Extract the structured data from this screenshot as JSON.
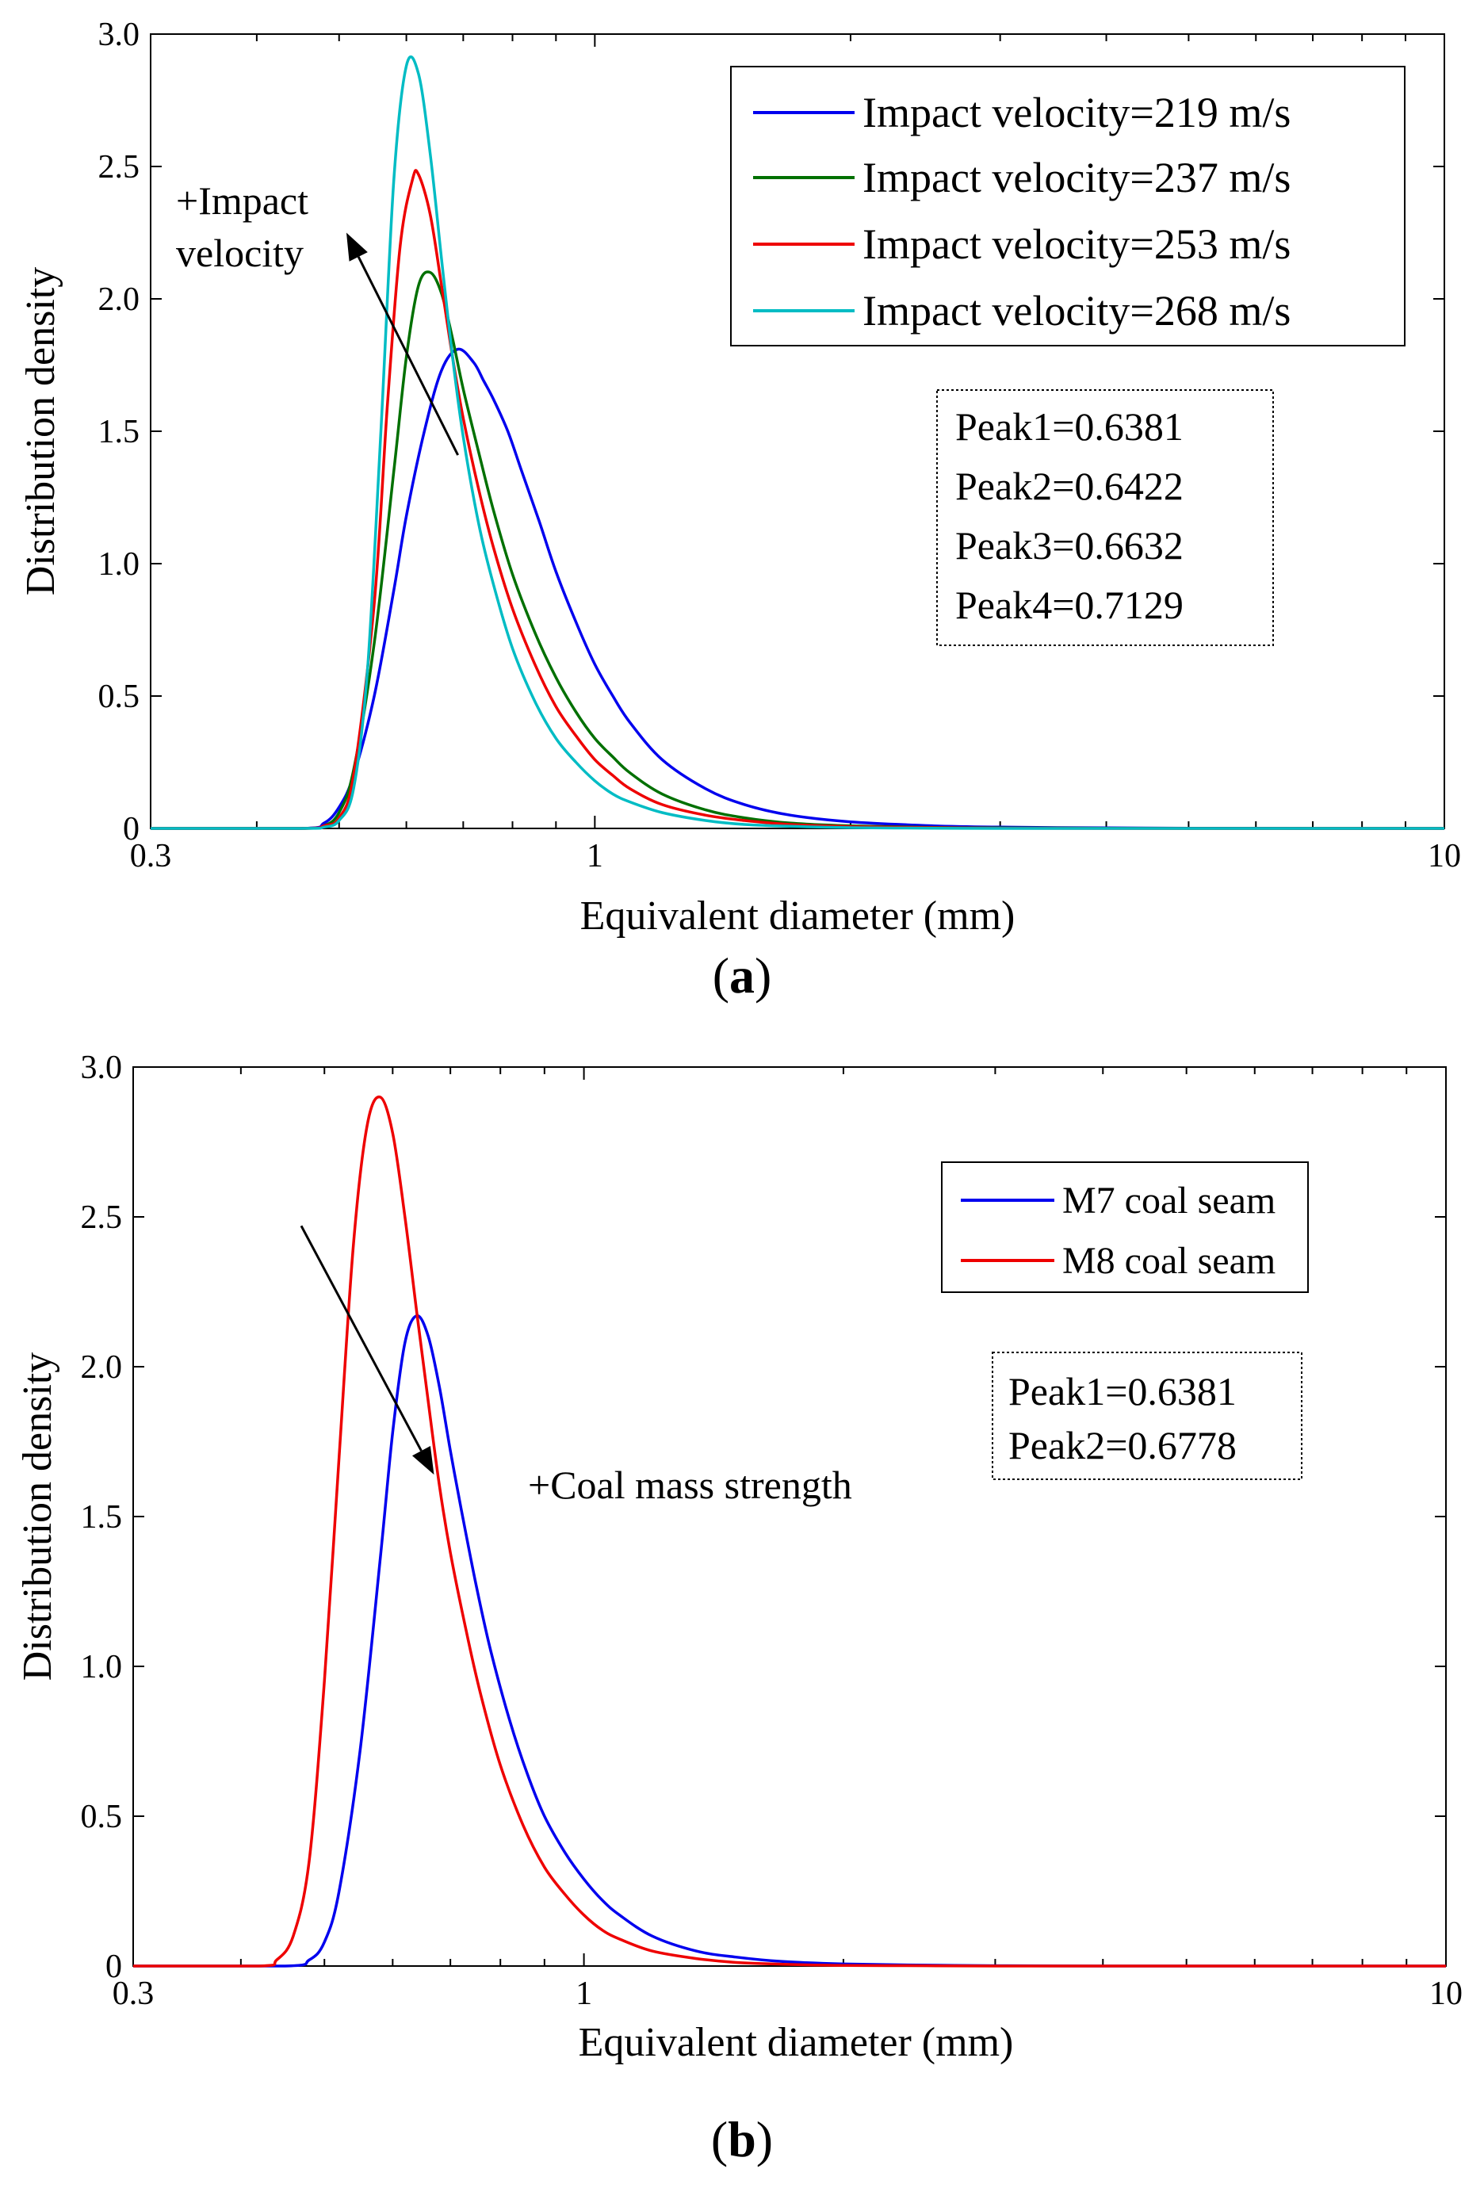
{
  "chart_data": [
    {
      "type": "line",
      "panel_label": "a",
      "xlabel": "Equivalent diameter (mm)",
      "ylabel": "Distribution density",
      "xscale": "log",
      "xlim": [
        0.3,
        10
      ],
      "ylim": [
        0,
        3.0
      ],
      "x_tick_labels": [
        "0.3",
        "1",
        "10"
      ],
      "x_ticks": [
        0.3,
        1,
        10
      ],
      "y_tick_labels": [
        "0",
        "0.5",
        "1.0",
        "1.5",
        "2.0",
        "2.5",
        "3.0"
      ],
      "y_ticks": [
        0,
        0.5,
        1.0,
        1.5,
        2.0,
        2.5,
        3.0
      ],
      "legend_position": "top-right",
      "series": [
        {
          "name": "Impact velocity=219 m/s",
          "color": "#0000ee",
          "x": [
            0.45,
            0.48,
            0.5,
            0.52,
            0.55,
            0.58,
            0.6,
            0.63,
            0.66,
            0.69,
            0.72,
            0.74,
            0.76,
            0.79,
            0.82,
            0.86,
            0.9,
            0.95,
            1.0,
            1.05,
            1.1,
            1.2,
            1.35,
            1.5,
            1.7,
            2.0,
            2.5,
            3.0,
            4.0,
            5.0,
            7.0,
            10.0
          ],
          "y": [
            0,
            0.02,
            0.08,
            0.2,
            0.5,
            0.9,
            1.18,
            1.5,
            1.73,
            1.81,
            1.76,
            1.69,
            1.62,
            1.5,
            1.35,
            1.16,
            0.97,
            0.78,
            0.62,
            0.5,
            0.4,
            0.26,
            0.15,
            0.09,
            0.05,
            0.025,
            0.01,
            0.005,
            0.002,
            0.001,
            0,
            0
          ]
        },
        {
          "name": "Impact velocity=237 m/s",
          "color": "#007000",
          "x": [
            0.45,
            0.48,
            0.5,
            0.52,
            0.55,
            0.58,
            0.6,
            0.62,
            0.64,
            0.66,
            0.68,
            0.7,
            0.73,
            0.76,
            0.8,
            0.85,
            0.9,
            0.95,
            1.0,
            1.05,
            1.1,
            1.2,
            1.35,
            1.5,
            1.7,
            2.0,
            2.5,
            3.0,
            4.0,
            5.0,
            7.0,
            10.0
          ],
          "y": [
            0,
            0.01,
            0.06,
            0.22,
            0.7,
            1.35,
            1.78,
            2.05,
            2.1,
            2.02,
            1.85,
            1.66,
            1.42,
            1.2,
            0.96,
            0.74,
            0.57,
            0.44,
            0.34,
            0.27,
            0.21,
            0.13,
            0.07,
            0.04,
            0.02,
            0.01,
            0.004,
            0.002,
            0.001,
            0,
            0,
            0
          ]
        },
        {
          "name": "Impact velocity=253 m/s",
          "color": "#ee0000",
          "x": [
            0.45,
            0.48,
            0.5,
            0.52,
            0.55,
            0.57,
            0.59,
            0.61,
            0.62,
            0.64,
            0.66,
            0.68,
            0.7,
            0.73,
            0.76,
            0.8,
            0.85,
            0.9,
            0.95,
            1.0,
            1.05,
            1.1,
            1.2,
            1.35,
            1.5,
            1.7,
            2.0,
            2.5,
            3.0,
            4.0,
            5.0,
            10.0
          ],
          "y": [
            0,
            0.01,
            0.04,
            0.2,
            0.85,
            1.6,
            2.2,
            2.45,
            2.47,
            2.32,
            2.05,
            1.78,
            1.55,
            1.28,
            1.06,
            0.83,
            0.62,
            0.46,
            0.35,
            0.26,
            0.2,
            0.15,
            0.09,
            0.05,
            0.03,
            0.015,
            0.007,
            0.003,
            0.001,
            0,
            0,
            0
          ]
        },
        {
          "name": "Impact velocity=268 m/s",
          "color": "#00bcc4",
          "x": [
            0.45,
            0.48,
            0.5,
            0.52,
            0.54,
            0.56,
            0.58,
            0.6,
            0.62,
            0.64,
            0.66,
            0.68,
            0.7,
            0.73,
            0.76,
            0.8,
            0.85,
            0.9,
            0.95,
            1.0,
            1.05,
            1.1,
            1.2,
            1.35,
            1.5,
            1.7,
            2.0,
            2.5,
            3.0,
            4.0,
            5.0,
            10.0
          ],
          "y": [
            0,
            0.005,
            0.03,
            0.15,
            0.6,
            1.5,
            2.45,
            2.88,
            2.85,
            2.55,
            2.15,
            1.78,
            1.48,
            1.15,
            0.92,
            0.68,
            0.48,
            0.34,
            0.25,
            0.18,
            0.13,
            0.1,
            0.06,
            0.03,
            0.015,
            0.008,
            0.003,
            0.001,
            0,
            0,
            0,
            0
          ]
        }
      ],
      "annotations": {
        "arrow_label": [
          "+Impact",
          "velocity"
        ],
        "arrow_from": [
          0.69,
          1.41
        ],
        "arrow_to": [
          0.51,
          2.25
        ],
        "peaks_box": [
          "Peak1=0.6381",
          "Peak2=0.6422",
          "Peak3=0.6632",
          "Peak4=0.7129"
        ]
      }
    },
    {
      "type": "line",
      "panel_label": "b",
      "xlabel": "Equivalent diameter (mm)",
      "ylabel": "Distribution density",
      "xscale": "log",
      "xlim": [
        0.3,
        10
      ],
      "ylim": [
        0,
        3.0
      ],
      "x_tick_labels": [
        "0.3",
        "1",
        "10"
      ],
      "x_ticks": [
        0.3,
        1,
        10
      ],
      "y_tick_labels": [
        "0",
        "0.5",
        "1.0",
        "1.5",
        "2.0",
        "2.5",
        "3.0"
      ],
      "y_ticks": [
        0,
        0.5,
        1.0,
        1.5,
        2.0,
        2.5,
        3.0
      ],
      "legend_position": "top-right",
      "series": [
        {
          "name": "M7 coal seam",
          "color": "#0000ee",
          "x": [
            0.45,
            0.48,
            0.5,
            0.52,
            0.55,
            0.58,
            0.6,
            0.62,
            0.64,
            0.66,
            0.68,
            0.7,
            0.72,
            0.75,
            0.78,
            0.82,
            0.86,
            0.9,
            0.95,
            1.0,
            1.05,
            1.1,
            1.2,
            1.35,
            1.5,
            1.7,
            2.0,
            2.5,
            3.0,
            4.0,
            5.0,
            10.0
          ],
          "y": [
            0,
            0.02,
            0.08,
            0.25,
            0.72,
            1.35,
            1.78,
            2.08,
            2.17,
            2.1,
            1.93,
            1.72,
            1.53,
            1.27,
            1.05,
            0.82,
            0.64,
            0.5,
            0.38,
            0.29,
            0.22,
            0.17,
            0.1,
            0.05,
            0.03,
            0.015,
            0.007,
            0.003,
            0.001,
            0,
            0,
            0
          ]
        },
        {
          "name": "M8 coal seam",
          "color": "#ee0000",
          "x": [
            0.42,
            0.44,
            0.46,
            0.48,
            0.5,
            0.52,
            0.54,
            0.56,
            0.58,
            0.6,
            0.62,
            0.64,
            0.66,
            0.68,
            0.7,
            0.73,
            0.76,
            0.8,
            0.85,
            0.9,
            0.95,
            1.0,
            1.05,
            1.1,
            1.2,
            1.35,
            1.5,
            1.7,
            2.0,
            2.5,
            3.0,
            10.0
          ],
          "y": [
            0,
            0.02,
            0.1,
            0.35,
            0.95,
            1.7,
            2.4,
            2.8,
            2.9,
            2.78,
            2.5,
            2.18,
            1.88,
            1.6,
            1.38,
            1.12,
            0.9,
            0.67,
            0.47,
            0.33,
            0.24,
            0.17,
            0.12,
            0.09,
            0.05,
            0.025,
            0.012,
            0.006,
            0.002,
            0.001,
            0,
            0
          ]
        }
      ],
      "annotations": {
        "arrow_label": "+Coal mass strength",
        "arrow_from": [
          0.47,
          2.47
        ],
        "arrow_to": [
          0.67,
          1.64
        ],
        "peaks_box": [
          "Peak1=0.6381",
          "Peak2=0.6778"
        ]
      }
    }
  ]
}
